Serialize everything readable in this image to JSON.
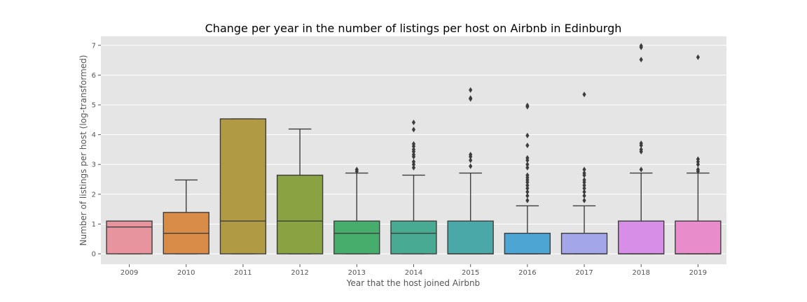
{
  "chart_data": {
    "type": "box",
    "title": "Change per year in the number of listings per host on Airbnb in Edinburgh",
    "xlabel": "Year that the host joined Airbnb",
    "ylabel": "Number of listings per host (log-transformed)",
    "ylim": [
      -0.35,
      7.3
    ],
    "yticks": [
      0,
      1,
      2,
      3,
      4,
      5,
      6,
      7
    ],
    "grid": true,
    "legend": "none",
    "categories": [
      "2009",
      "2010",
      "2011",
      "2012",
      "2013",
      "2014",
      "2015",
      "2016",
      "2017",
      "2018",
      "2019"
    ],
    "boxes": [
      {
        "q1": 0,
        "median": 0.9,
        "q3": 1.1,
        "whisker_low": 0,
        "whisker_high": 1.1,
        "outliers": [],
        "color": "#e8949e"
      },
      {
        "q1": 0,
        "median": 0.69,
        "q3": 1.39,
        "whisker_low": 0,
        "whisker_high": 2.48,
        "outliers": [],
        "color": "#d88c47"
      },
      {
        "q1": 0,
        "median": 1.1,
        "q3": 4.53,
        "whisker_low": 0,
        "whisker_high": 4.53,
        "outliers": [],
        "color": "#b19a44"
      },
      {
        "q1": 0,
        "median": 1.1,
        "q3": 2.64,
        "whisker_low": 0,
        "whisker_high": 4.19,
        "outliers": [],
        "color": "#89a343"
      },
      {
        "q1": 0,
        "median": 0.69,
        "q3": 1.1,
        "whisker_low": 0,
        "whisker_high": 2.71,
        "outliers": [
          2.77,
          2.83
        ],
        "color": "#47ad6d"
      },
      {
        "q1": 0,
        "median": 0.69,
        "q3": 1.1,
        "whisker_low": 0,
        "whisker_high": 2.64,
        "outliers": [
          2.89,
          3.0,
          3.09,
          3.26,
          3.33,
          3.43,
          3.5,
          3.61,
          3.69,
          4.17,
          4.41
        ],
        "color": "#48ab91"
      },
      {
        "q1": 0,
        "median": 0,
        "q3": 1.1,
        "whisker_low": 0,
        "whisker_high": 2.71,
        "outliers": [
          2.94,
          3.14,
          3.26,
          3.33,
          5.2,
          5.23,
          5.5
        ],
        "color": "#4aa8a8"
      },
      {
        "q1": 0,
        "median": 0,
        "q3": 0.69,
        "whisker_low": 0,
        "whisker_high": 1.61,
        "outliers": [
          1.79,
          1.95,
          2.08,
          2.2,
          2.3,
          2.4,
          2.48,
          2.56,
          2.64,
          2.89,
          3.0,
          3.14,
          3.22,
          3.64,
          3.97,
          4.94,
          4.98
        ],
        "color": "#4ca5d3"
      },
      {
        "q1": 0,
        "median": 0,
        "q3": 0.69,
        "whisker_low": 0,
        "whisker_high": 1.61,
        "outliers": [
          1.79,
          1.95,
          2.08,
          2.2,
          2.3,
          2.4,
          2.48,
          2.64,
          2.71,
          2.83,
          5.35
        ],
        "color": "#a3a7e9"
      },
      {
        "q1": 0,
        "median": 0,
        "q3": 1.1,
        "whisker_low": 0,
        "whisker_high": 2.71,
        "outliers": [
          2.83,
          3.43,
          3.5,
          3.64,
          3.71,
          6.52,
          6.93,
          6.98
        ],
        "color": "#d68ee6"
      },
      {
        "q1": 0,
        "median": 0,
        "q3": 1.1,
        "whisker_low": 0,
        "whisker_high": 2.71,
        "outliers": [
          2.77,
          2.83,
          3.0,
          3.09,
          3.18,
          6.6
        ],
        "color": "#e88ccb"
      }
    ]
  }
}
